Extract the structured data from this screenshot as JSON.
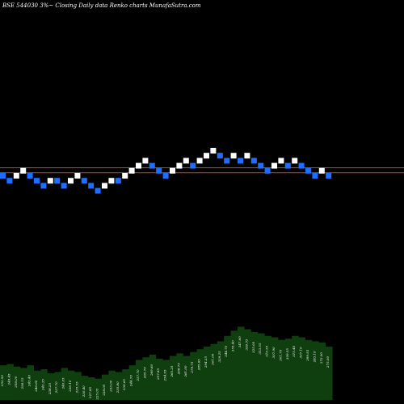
{
  "chart_data": {
    "type": "renko",
    "title": "BSE 544030  3%~   Closing Daily data  Renko  charts MunafaSutra.com",
    "colors": {
      "background": "#000000",
      "up": "#ffffff",
      "down": "#1e6fff",
      "reference_line": "#b5481f",
      "volume_fill": "#0f3e0f"
    },
    "reference_lines": [
      1,
      2
    ],
    "bricks": [
      {
        "level": 0,
        "color": "down"
      },
      {
        "level": -1,
        "color": "down"
      },
      {
        "level": 0,
        "color": "up"
      },
      {
        "level": 1,
        "color": "up"
      },
      {
        "level": 0,
        "color": "down"
      },
      {
        "level": -1,
        "color": "down"
      },
      {
        "level": -2,
        "color": "down"
      },
      {
        "level": -1,
        "color": "up"
      },
      {
        "level": -1,
        "color": "down"
      },
      {
        "level": -2,
        "color": "down"
      },
      {
        "level": -1,
        "color": "up"
      },
      {
        "level": 0,
        "color": "up"
      },
      {
        "level": -1,
        "color": "down"
      },
      {
        "level": -2,
        "color": "down"
      },
      {
        "level": -3,
        "color": "down"
      },
      {
        "level": -2,
        "color": "up"
      },
      {
        "level": -1,
        "color": "up"
      },
      {
        "level": -1,
        "color": "down"
      },
      {
        "level": 0,
        "color": "up"
      },
      {
        "level": 1,
        "color": "up"
      },
      {
        "level": 2,
        "color": "up"
      },
      {
        "level": 3,
        "color": "up"
      },
      {
        "level": 2,
        "color": "down"
      },
      {
        "level": 1,
        "color": "down"
      },
      {
        "level": 0,
        "color": "down"
      },
      {
        "level": 1,
        "color": "up"
      },
      {
        "level": 2,
        "color": "up"
      },
      {
        "level": 3,
        "color": "up"
      },
      {
        "level": 2,
        "color": "down"
      },
      {
        "level": 3,
        "color": "up"
      },
      {
        "level": 4,
        "color": "up"
      },
      {
        "level": 5,
        "color": "up"
      },
      {
        "level": 4,
        "color": "down"
      },
      {
        "level": 3,
        "color": "down"
      },
      {
        "level": 4,
        "color": "up"
      },
      {
        "level": 3,
        "color": "down"
      },
      {
        "level": 4,
        "color": "up"
      },
      {
        "level": 3,
        "color": "down"
      },
      {
        "level": 2,
        "color": "down"
      },
      {
        "level": 1,
        "color": "down"
      },
      {
        "level": 2,
        "color": "up"
      },
      {
        "level": 3,
        "color": "up"
      },
      {
        "level": 2,
        "color": "down"
      },
      {
        "level": 3,
        "color": "up"
      },
      {
        "level": 2,
        "color": "down"
      },
      {
        "level": 1,
        "color": "down"
      },
      {
        "level": 0,
        "color": "down"
      },
      {
        "level": 1,
        "color": "up"
      },
      {
        "level": 0,
        "color": "down"
      }
    ],
    "volume": {
      "values": [
        26,
        27,
        25,
        24,
        26,
        22,
        23,
        20,
        21,
        24,
        22,
        21,
        18,
        17,
        16,
        19,
        22,
        21,
        23,
        26,
        30,
        32,
        34,
        31,
        30,
        33,
        35,
        33,
        36,
        38,
        40,
        42,
        44,
        48,
        52,
        55,
        53,
        51,
        50,
        48,
        47,
        45,
        46,
        48,
        47,
        45,
        44,
        43,
        40
      ],
      "labels": [
        "253.50",
        "249.45",
        "258.00",
        "256.15",
        "243.40",
        "246.60",
        "243.35",
        "238.25",
        "237.70",
        "240.05",
        "236.10",
        "235.55",
        "230.40",
        "227.85",
        "225.05",
        "228.05",
        "233.00",
        "235.80",
        "239.65",
        "244.70",
        "257.70",
        "265.70",
        "269.60",
        "257.85",
        "254.95",
        "265.25",
        "268.75",
        "261.00",
        "279.75",
        "285.65",
        "294.35",
        "301.00",
        "329.25",
        "344.75",
        "355.40",
        "347.60",
        "336.55",
        "325.00",
        "313.55",
        "319.55",
        "307.90",
        "301.70",
        "309.55",
        "315.40",
        "307.10",
        "299.55",
        "283.10",
        "272.00",
        "275.00"
      ]
    }
  }
}
